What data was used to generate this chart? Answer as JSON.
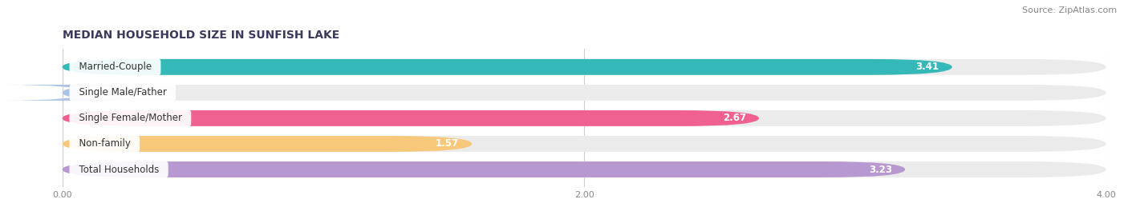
{
  "title": "MEDIAN HOUSEHOLD SIZE IN SUNFISH LAKE",
  "source": "Source: ZipAtlas.com",
  "categories": [
    "Married-Couple",
    "Single Male/Father",
    "Single Female/Mother",
    "Non-family",
    "Total Households"
  ],
  "values": [
    3.41,
    0.0,
    2.67,
    1.57,
    3.23
  ],
  "bar_colors": [
    "#34b8b8",
    "#aac4e8",
    "#f06090",
    "#f7c87a",
    "#b898d0"
  ],
  "xlim": [
    0,
    4.0
  ],
  "xticks": [
    0.0,
    2.0,
    4.0
  ],
  "xtick_labels": [
    "0.00",
    "2.00",
    "4.00"
  ],
  "background_color": "#ffffff",
  "bar_background_color": "#ebebeb",
  "title_fontsize": 10,
  "source_fontsize": 8,
  "label_fontsize": 8.5,
  "value_fontsize": 8.5,
  "bar_height": 0.62,
  "bar_gap": 0.38,
  "zero_value_label_color": "#555555"
}
